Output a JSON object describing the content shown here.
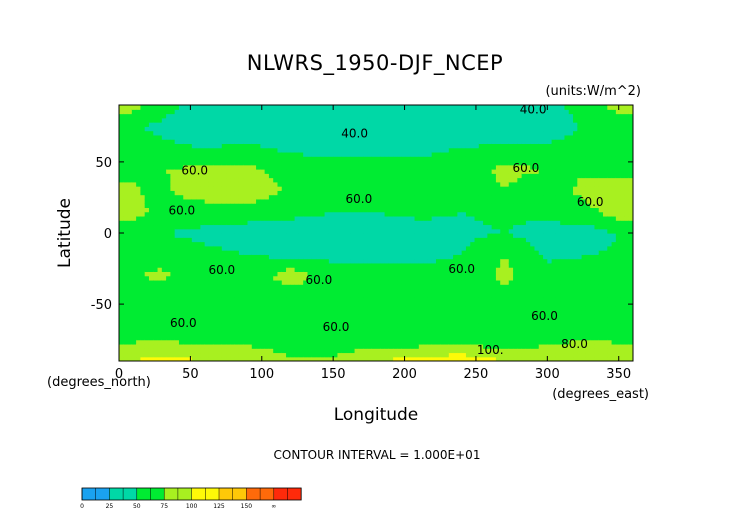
{
  "chart_data": {
    "type": "heatmap",
    "title": "NLWRS_1950-DJF_NCEP",
    "units": "(units:W/m^2)",
    "xlabel": "Longitude",
    "ylabel": "Latitude",
    "x_unit_label": "(degrees_east)",
    "y_unit_label": "(degrees_north)",
    "subtitle": "CONTOUR INTERVAL = 1.000E+01",
    "xlim": [
      0,
      360
    ],
    "ylim": [
      -90,
      90
    ],
    "x_ticks": [
      0,
      50,
      100,
      150,
      200,
      250,
      300,
      350
    ],
    "y_ticks": [
      -50,
      0,
      50
    ],
    "contour_labels": [
      {
        "text": "40.0",
        "lon": 290,
        "lat": 84
      },
      {
        "text": "40.0",
        "lon": 165,
        "lat": 67
      },
      {
        "text": "60.0",
        "lon": 330,
        "lat": 19
      },
      {
        "text": "60.0",
        "lon": 168,
        "lat": 21
      },
      {
        "text": "60.0",
        "lon": 140,
        "lat": -36
      },
      {
        "text": "60.0",
        "lon": 240,
        "lat": -28
      },
      {
        "text": "60.0",
        "lon": 72,
        "lat": -29
      },
      {
        "text": "60.0",
        "lon": 285,
        "lat": 43
      },
      {
        "text": "60.0",
        "lon": 298,
        "lat": -61
      },
      {
        "text": "60.0",
        "lon": 152,
        "lat": -69
      },
      {
        "text": "60.0",
        "lon": 45,
        "lat": -66
      },
      {
        "text": "60.0",
        "lon": 53,
        "lat": 41
      },
      {
        "text": "60.0",
        "lon": 44,
        "lat": 13
      },
      {
        "text": "100.",
        "lon": 260,
        "lat": -85
      },
      {
        "text": "80.0",
        "lon": 319,
        "lat": -81
      }
    ],
    "legend": {
      "levels": [
        "0",
        "25",
        "50",
        "75",
        "100",
        "125",
        "150",
        "∞"
      ],
      "colors": [
        "#1aa2f0",
        "#00d8a6",
        "#00ec32",
        "#a8f020",
        "#fefa08",
        "#fec808",
        "#ff6a0a",
        "#ff2a0a"
      ]
    },
    "z_estimated_field": {
      "lon": [
        0,
        30,
        60,
        90,
        120,
        150,
        180,
        210,
        240,
        270,
        300,
        330,
        360
      ],
      "lat": [
        90,
        75,
        60,
        45,
        30,
        15,
        0,
        -15,
        -30,
        -45,
        -60,
        -75,
        -90
      ],
      "values": [
        [
          95,
          60,
          40,
          45,
          40,
          40,
          45,
          40,
          40,
          35,
          40,
          65,
          95
        ],
        [
          55,
          45,
          30,
          35,
          35,
          35,
          40,
          35,
          30,
          30,
          35,
          55,
          55
        ],
        [
          60,
          55,
          50,
          55,
          45,
          45,
          45,
          45,
          50,
          55,
          55,
          60,
          60
        ],
        [
          70,
          75,
          80,
          80,
          65,
          55,
          55,
          55,
          65,
          80,
          75,
          70,
          70
        ],
        [
          80,
          70,
          90,
          95,
          70,
          60,
          60,
          60,
          60,
          75,
          60,
          85,
          80
        ],
        [
          95,
          65,
          60,
          60,
          55,
          50,
          50,
          55,
          50,
          55,
          55,
          70,
          95
        ],
        [
          55,
          50,
          45,
          40,
          40,
          40,
          40,
          40,
          45,
          50,
          40,
          40,
          55
        ],
        [
          55,
          65,
          55,
          50,
          45,
          45,
          45,
          45,
          50,
          75,
          45,
          50,
          55
        ],
        [
          70,
          80,
          60,
          55,
          90,
          60,
          60,
          55,
          60,
          80,
          60,
          60,
          70
        ],
        [
          60,
          55,
          60,
          60,
          60,
          60,
          60,
          60,
          60,
          70,
          65,
          60,
          60
        ],
        [
          60,
          60,
          60,
          60,
          60,
          60,
          60,
          60,
          60,
          60,
          60,
          60,
          60
        ],
        [
          70,
          75,
          65,
          65,
          60,
          60,
          60,
          60,
          60,
          60,
          70,
          75,
          70
        ],
        [
          95,
          110,
          100,
          100,
          80,
          80,
          100,
          110,
          120,
          100,
          90,
          100,
          95
        ]
      ]
    }
  }
}
